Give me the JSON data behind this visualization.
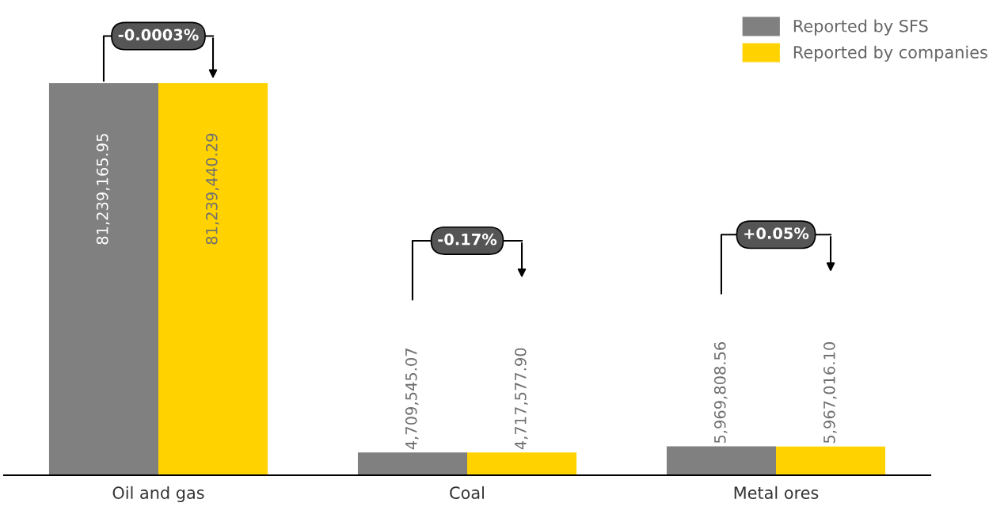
{
  "chart_data": {
    "type": "bar",
    "categories": [
      "Oil and gas",
      "Coal",
      "Metal ores"
    ],
    "series": [
      {
        "name": "Reported by SFS",
        "color": "#808080",
        "values": [
          81239165.95,
          4709545.07,
          5969808.56
        ],
        "value_labels": [
          "81,239,165.95",
          "4,709,545.07",
          "5,969,808.56"
        ]
      },
      {
        "name": "Reported by companies",
        "color": "#ffd200",
        "values": [
          81239440.29,
          4717577.9,
          5967016.1
        ],
        "value_labels": [
          "81,239,440.29",
          "4,717,577.90",
          "5,967,016.10"
        ]
      }
    ],
    "legend": "top right",
    "annotations": [
      "-0.0003%",
      "-0.17%",
      "+0.05%"
    ]
  }
}
